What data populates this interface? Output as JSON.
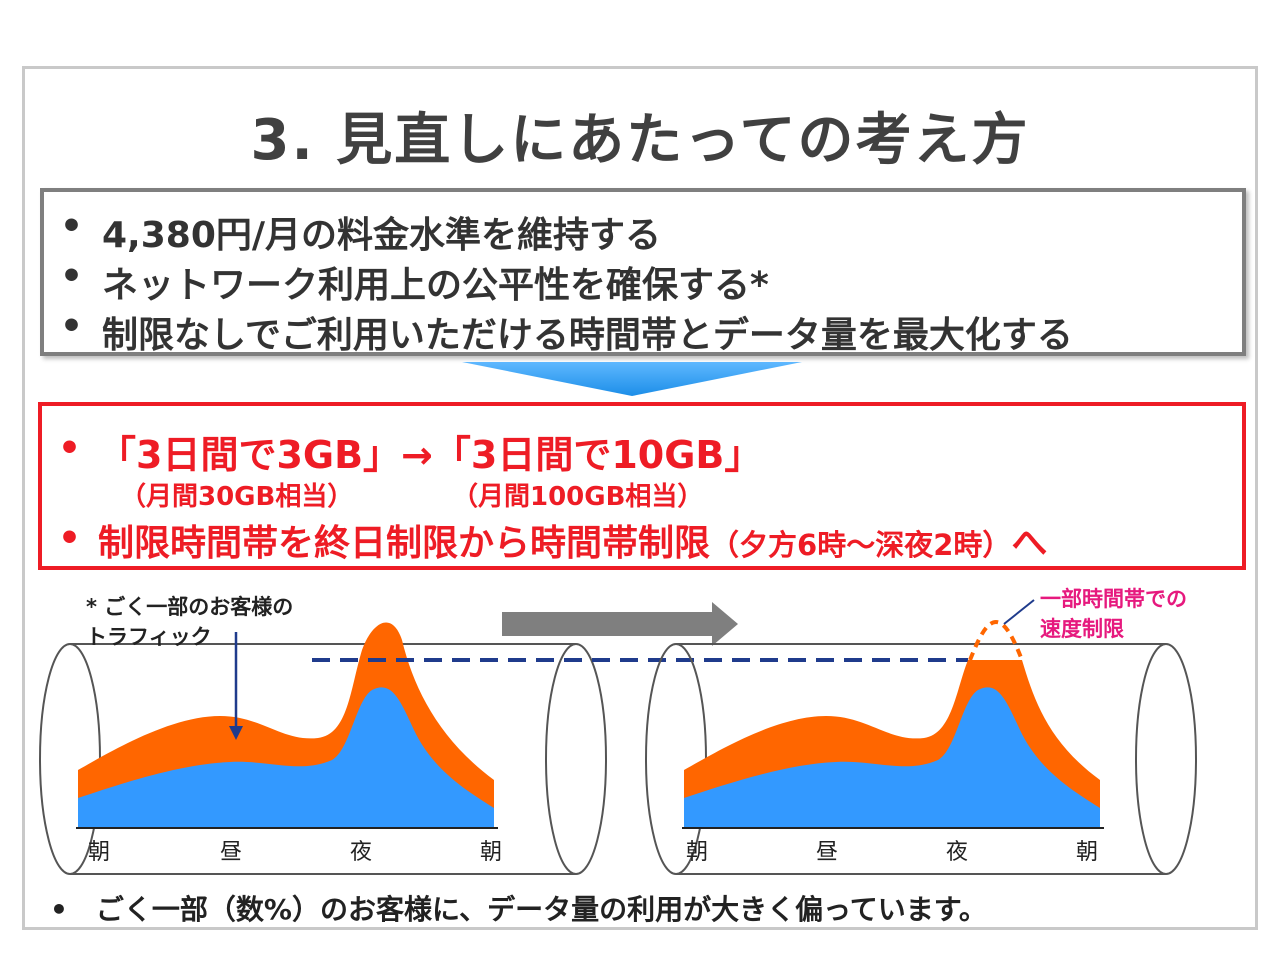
{
  "title": "3. 見直しにあたっての考え方",
  "principles": {
    "bullet": "•",
    "items": [
      "4,380円/月の料金水準を維持する",
      "ネットワーク利用上の公平性を確保する*",
      "制限なしでご利用いただける時間帯とデータ量を最大化する"
    ]
  },
  "changes": {
    "bullet": "•",
    "line1": "「3日間で3GB」→「3日間で10GB」",
    "sub_before": "（月間30GB相当）",
    "sub_after": "（月間100GB相当）",
    "line2_main": "制限時間帯を終日制限から時間帯制限",
    "line2_paren": "（夕方6時～深夜2時）",
    "line2_end": "へ"
  },
  "annotations": {
    "traffic_line1": "* ごく一部のお客様の",
    "traffic_line2": "トラフィック",
    "throttle_line1": "一部時間帯での",
    "throttle_line2": "速度制限"
  },
  "time_axis": [
    "朝",
    "昼",
    "夜",
    "朝"
  ],
  "footer": "•　ごく一部（数%）のお客様に、データ量の利用が大きく偏っています。",
  "colors": {
    "heavy_users": "#ff6600",
    "all_users": "#3399ff",
    "arrow_down": "#2e9df3",
    "arrow_right": "#7f7f7f",
    "limit_line": "#1f3b8c",
    "red": "#ee1c25",
    "pink": "#e6197e"
  }
}
